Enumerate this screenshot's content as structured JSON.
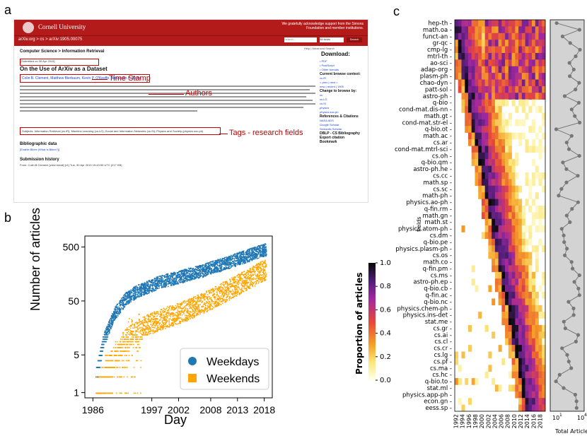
{
  "panel_labels": {
    "a": "a",
    "b": "b",
    "c": "c"
  },
  "arxiv_screenshot": {
    "university": "Cornell University",
    "support": "We gratefully acknowledge support from the Simons Foundation and member institutions.",
    "breadcrumb": "arXiv.org > cs > arXiv:1905.00075",
    "search_placeholder": "Search...",
    "search_field": "All fields",
    "search_button": "Search",
    "help": "Help | Advanced Search",
    "category": "Computer Science > Information Retrieval",
    "submitted": "[Submitted on 30 Apr 2019]",
    "title": "On the Use of ArXiv as a Dataset",
    "authors": "Colin B. Clement, Matthew Bierbaum, Kevin P. O'Keeffe, Alexander A. Alemi",
    "subjects": "Subjects:   Information Retrieval (cs.IR); Machine Learning (cs.LG); Social and Information Networks (cs.SI); Physics and Society (physics.soc-ph)",
    "bibliographic": "Bibliographic data",
    "bibliographic_link": "[Enable Bibex (What is Bibex?)]",
    "history": "Submission history",
    "history_line": "From: Colin B Clement [view email]  [v1] Tue, 30 Apr 2019 19:43:53 UTC (217 KB)",
    "download": "Download:",
    "side_links": [
      "PDF",
      "PostScript",
      "Other formats",
      "Current browse context:",
      "cs.IR",
      "< prev | next >",
      "new | recent | 1905",
      "Change to browse by:",
      "cs",
      "cs.LG",
      "cs.SI",
      "physics",
      "physics.soc-ph",
      "References & Citations",
      "NASA ADS",
      "Google Scholar",
      "Semantic Scholar",
      "DBLP - CS Bibliography",
      "Export citation",
      "Bookmark"
    ],
    "annotations": {
      "time_stamp": "Time Stamp",
      "authors": "Authors",
      "tags": "Tags - research fields"
    }
  },
  "colors": {
    "weekdays": "#1f77b4",
    "weekends": "#ffa500",
    "arxiv_red": "#b31b1b",
    "annotation": "#c00000"
  },
  "chart_data": [
    {
      "type": "scatter",
      "panel": "b",
      "xlabel": "Day",
      "ylabel": "Number of articles",
      "yscale": "log",
      "ylim": [
        0.8,
        800
      ],
      "xlim": [
        1984.5,
        2019.5
      ],
      "x_ticks": [
        "1986",
        "1997",
        "2002",
        "2008",
        "2013",
        "2018"
      ],
      "x_tick_values": [
        1986,
        1997,
        2002,
        2008,
        2013,
        2018
      ],
      "y_ticks": [
        "1",
        "5",
        "50",
        "500"
      ],
      "y_tick_values": [
        1,
        5,
        50,
        500
      ],
      "legend": "bottom-right",
      "series": [
        {
          "name": "Weekdays",
          "color": "#1f77b4",
          "trend_x": [
            1986.5,
            1988,
            1990,
            1992,
            1994,
            1996,
            1998,
            2000,
            2002,
            2004,
            2006,
            2008,
            2010,
            2012,
            2014,
            2016,
            2018
          ],
          "trend_y": [
            2,
            10,
            30,
            55,
            75,
            90,
            110,
            125,
            140,
            160,
            180,
            210,
            240,
            280,
            330,
            390,
            450
          ]
        },
        {
          "name": "Weekends",
          "color": "#ffa500",
          "trend_x": [
            1986.5,
            1988,
            1990,
            1992,
            1994,
            1996,
            1998,
            2000,
            2002,
            2004,
            2006,
            2008,
            2010,
            2012,
            2014,
            2016,
            2018
          ],
          "trend_y": [
            1,
            2,
            5,
            10,
            14,
            18,
            22,
            26,
            30,
            36,
            45,
            55,
            70,
            90,
            115,
            150,
            190
          ]
        }
      ]
    },
    {
      "type": "heatmap",
      "panel": "c",
      "ylabel": "fields",
      "colorbar_label": "Proportion of articles",
      "colorbar_ticks": [
        "0.0",
        "0.2",
        "0.4",
        "0.6",
        "0.8",
        "1.0"
      ],
      "colorbar_tick_values": [
        0.0,
        0.2,
        0.4,
        0.6,
        0.8,
        1.0
      ],
      "x_ticks": [
        "1992",
        "1994",
        "1996",
        "1998",
        "2000",
        "2002",
        "2004",
        "2006",
        "2008",
        "2010",
        "2012",
        "2014",
        "2016",
        "2018"
      ],
      "fields": [
        "hep-th",
        "math.oa",
        "funct-an",
        "gr-qc",
        "cmp-lg",
        "mtrl-th",
        "ao-sci",
        "adap-org",
        "plasm-ph",
        "chao-dyn",
        "patt-sol",
        "astro-ph",
        "q-bio",
        "cond-mat.dis-nn",
        "math.gt",
        "cond-mat.str-el",
        "q-bio.ot",
        "math.ac",
        "cs.ar",
        "cond-mat.mtrl-sci",
        "cs.oh",
        "q-bio.qm",
        "astro-ph.he",
        "cs.cc",
        "math.sp",
        "cs.sc",
        "math-ph",
        "physics.ao-ph",
        "q-fin.rm",
        "math.gn",
        "math.st",
        "physics.atom-ph",
        "cs.dm",
        "q-bio.pe",
        "physics.plasm-ph",
        "cs.os",
        "math.co",
        "q-fin.pm",
        "cs.ms",
        "astro-ph.ep",
        "q-bio.cb",
        "q-fin.ac",
        "q-bio.nc",
        "physics.chem-ph",
        "physics.ins-det",
        "stat.me",
        "cs.gr",
        "cs.ai",
        "cs.cl",
        "cs.cr",
        "cs.lg",
        "cs.pf",
        "cs.ma",
        "cs.hc",
        "q-bio.to",
        "stat.ml",
        "physics.app-ph",
        "econ.gn",
        "eess.sp"
      ],
      "side_panel": {
        "xlabel": "Total Articles",
        "x_ticks": [
          "10",
          "10"
        ],
        "x_tick_exponents": [
          "1",
          "4"
        ]
      }
    }
  ]
}
